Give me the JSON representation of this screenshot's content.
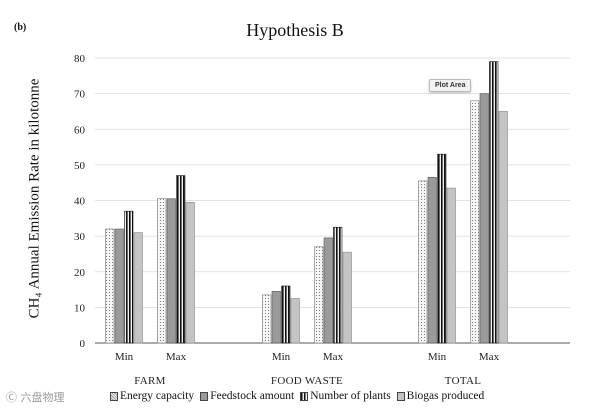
{
  "panel_label": "(b)",
  "tooltip": "Plot Area",
  "watermark": "Ⓒ 六盘物理",
  "colors": {
    "energy": "#f4f4f4",
    "feedstock": "#9a9a9a",
    "plants": "#1a1a1a",
    "biogas": "#c4c4c4",
    "grid": "#d9d9d9",
    "axis": "#555555"
  },
  "chart_data": {
    "type": "bar",
    "title": "Hypothesis B",
    "ylabel": "CH₄ Annual Emission Rate in kilotonne",
    "xlabel": "",
    "ylim": [
      0,
      80
    ],
    "yticks": [
      0,
      10,
      20,
      30,
      40,
      50,
      60,
      70,
      80
    ],
    "grid": true,
    "legend_position": "bottom",
    "groups": [
      {
        "name": "FARM",
        "categories": [
          "Min",
          "Max"
        ]
      },
      {
        "name": "FOOD WASTE",
        "categories": [
          "Min",
          "Max"
        ]
      },
      {
        "name": "TOTAL",
        "categories": [
          "Min",
          "Max"
        ]
      }
    ],
    "series": [
      {
        "name": "Energy capacity",
        "pattern": "dots",
        "values": [
          32,
          40.5,
          13.5,
          27,
          45.5,
          68
        ]
      },
      {
        "name": "Feedstock amount",
        "pattern": "solid-dark",
        "values": [
          32,
          40.5,
          14.5,
          29.5,
          46.5,
          70
        ]
      },
      {
        "name": "Number of plants",
        "pattern": "vertical-stripes",
        "values": [
          37,
          47,
          16,
          32.5,
          53,
          79
        ]
      },
      {
        "name": "Biogas produced",
        "pattern": "solid-light",
        "values": [
          31,
          39.5,
          12.5,
          25.5,
          43.5,
          65
        ]
      }
    ]
  }
}
